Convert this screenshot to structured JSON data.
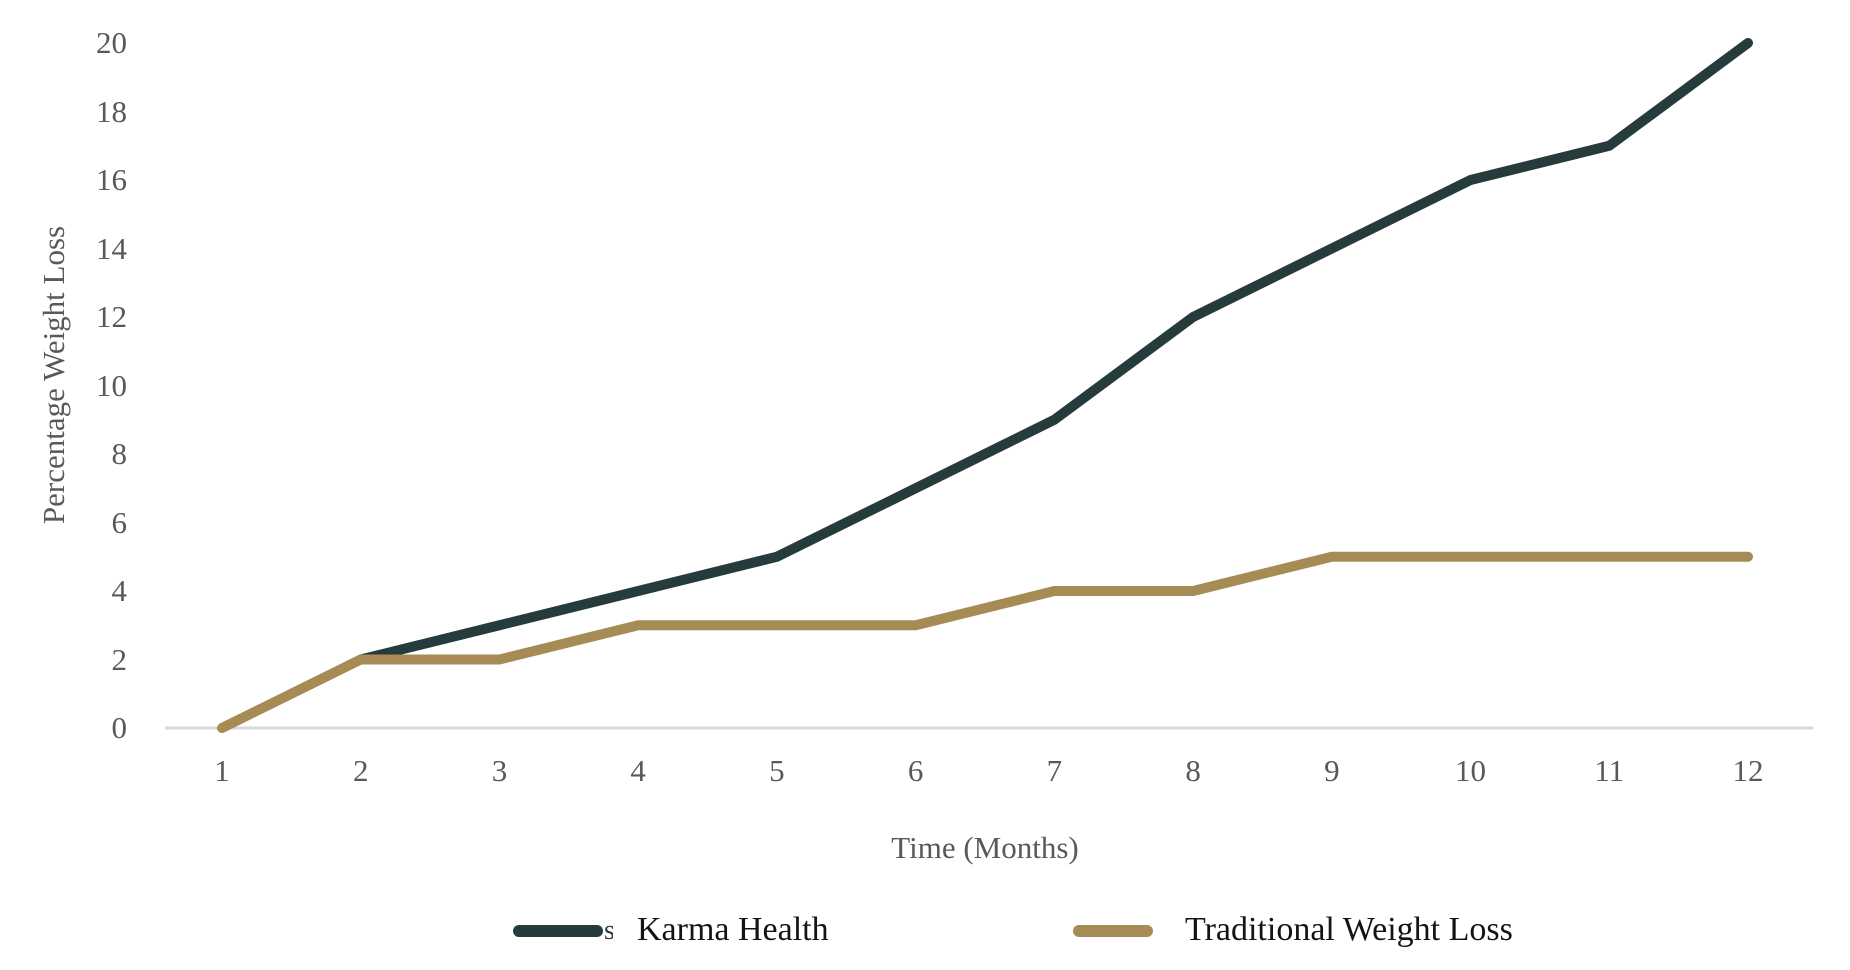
{
  "chart_data": {
    "type": "line",
    "title": "",
    "xlabel": "Time (Months)",
    "ylabel": "Percentage Weight Loss",
    "x": [
      1,
      2,
      3,
      4,
      5,
      6,
      7,
      8,
      9,
      10,
      11,
      12
    ],
    "xtick_labels": [
      "1",
      "2",
      "3",
      "4",
      "5",
      "6",
      "7",
      "8",
      "9",
      "10",
      "11",
      "12"
    ],
    "yticks": [
      0,
      2,
      4,
      6,
      8,
      10,
      12,
      14,
      16,
      18,
      20
    ],
    "xlim": [
      1,
      12
    ],
    "ylim": [
      0,
      20
    ],
    "grid": false,
    "legend_position": "bottom",
    "series": [
      {
        "name": "Karma Health",
        "color": "#263C3C",
        "values": [
          null,
          2,
          3,
          4,
          5,
          7,
          9,
          12,
          14,
          16,
          17,
          20
        ]
      },
      {
        "name": "Traditional Weight Loss",
        "color": "#A78B55",
        "values": [
          0,
          2,
          2,
          3,
          3,
          3,
          4,
          4,
          5,
          5,
          5,
          5
        ]
      }
    ]
  },
  "legend": {
    "artifact_glyph": "s"
  },
  "colors": {
    "axis_line": "#D9D9D9",
    "tick_text": "#595959",
    "axis_title_text": "#595959",
    "legend_text": "#141414",
    "background": "#FFFFFF"
  }
}
